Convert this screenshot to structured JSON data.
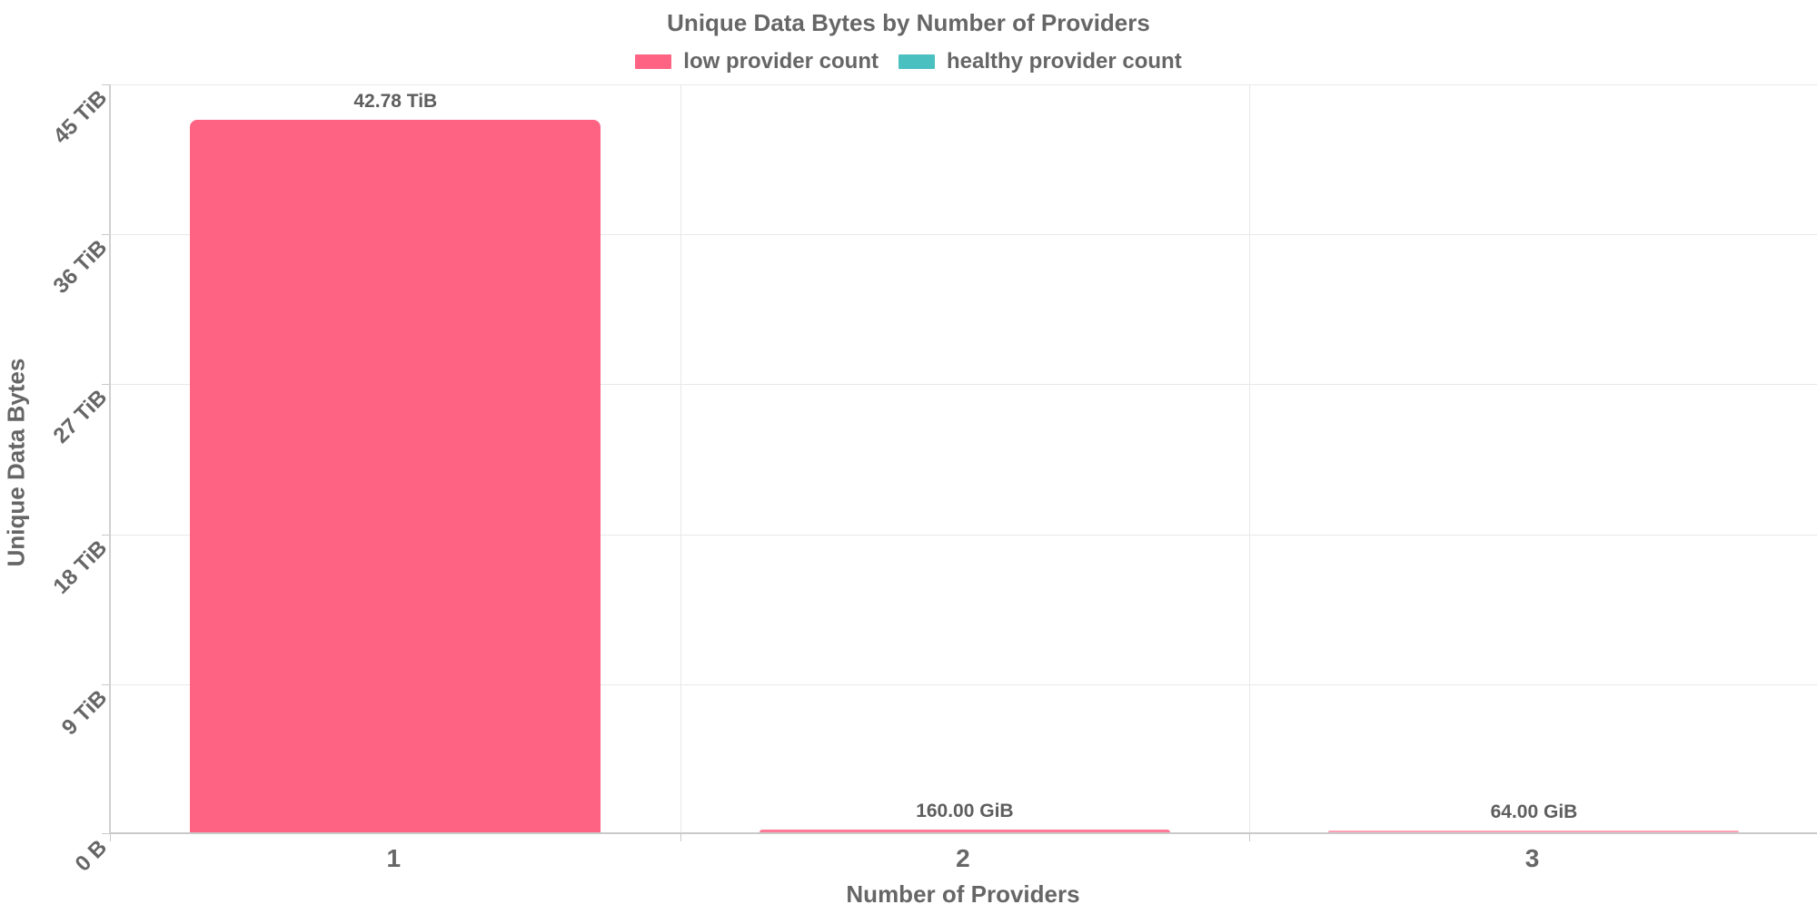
{
  "chart_data": {
    "type": "bar",
    "title": "Unique Data Bytes by Number of Providers",
    "xlabel": "Number of Providers",
    "ylabel": "Unique Data Bytes",
    "categories": [
      "1",
      "2",
      "3"
    ],
    "series": [
      {
        "name": "low provider count",
        "color": "#FF6384",
        "values_tib": [
          42.78,
          0.15625,
          0.0625
        ],
        "value_labels": [
          "42.78 TiB",
          "160.00 GiB",
          "64.00 GiB"
        ]
      },
      {
        "name": "healthy provider count",
        "color": "#4BC0C0",
        "values_tib": [
          0,
          0,
          0
        ],
        "value_labels": [
          "",
          "",
          ""
        ]
      }
    ],
    "y_ticks": [
      "45 TiB",
      "36 TiB",
      "27 TiB",
      "18 TiB",
      "9 TiB",
      "0 B"
    ],
    "ylim": [
      0,
      45
    ],
    "ylim_labels": [
      "0 B",
      "45 TiB"
    ],
    "grid": true,
    "legend_position": "top",
    "text_color": "#666666",
    "gridline_color": "#e8e8e8",
    "axis_line_color": "#c9c9c9"
  }
}
